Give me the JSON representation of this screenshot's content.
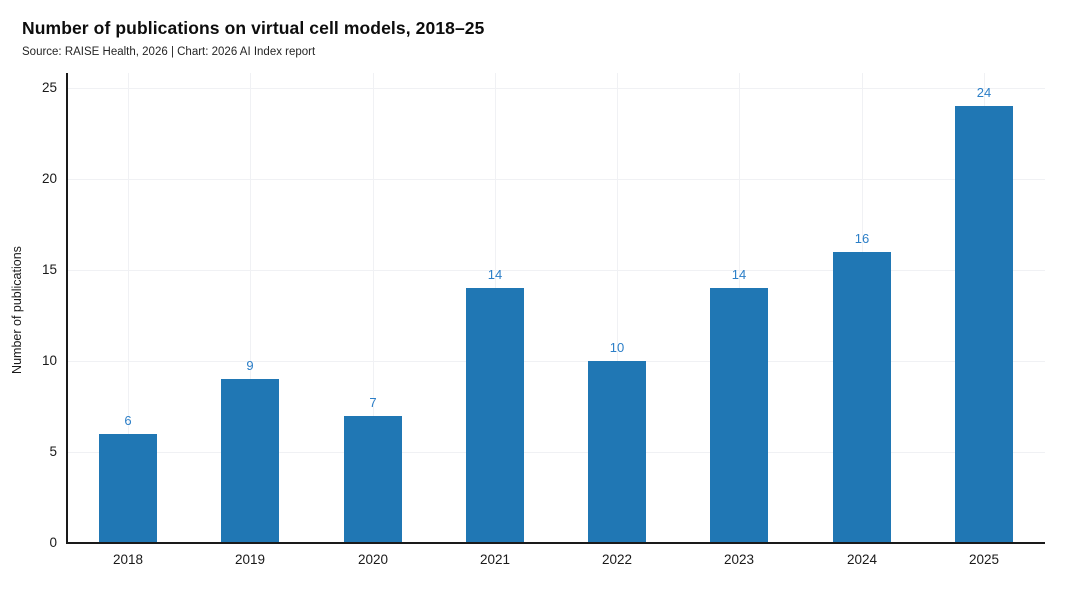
{
  "chart_data": {
    "type": "bar",
    "title": "Number of publications on virtual cell models, 2018–25",
    "subtitle": "Source: RAISE Health, 2026 | Chart: 2026 AI Index report",
    "categories": [
      "2018",
      "2019",
      "2020",
      "2021",
      "2022",
      "2023",
      "2024",
      "2025"
    ],
    "values": [
      6,
      9,
      7,
      14,
      10,
      14,
      16,
      24
    ],
    "xlabel": "",
    "ylabel": "Number of publications",
    "ylim": [
      0,
      25
    ],
    "yticks": [
      0,
      5,
      10,
      15,
      20,
      25
    ],
    "grid": "major horizontal and vertical, very light",
    "legend": "none",
    "value_labels": "above bars",
    "colors": {
      "bar": "#2077b4",
      "value_label": "#2b7ec7",
      "grid": "#f0f1f4",
      "axis": "#1a1a1a",
      "title": "#0d0d0d",
      "subtitle": "#262626"
    }
  }
}
